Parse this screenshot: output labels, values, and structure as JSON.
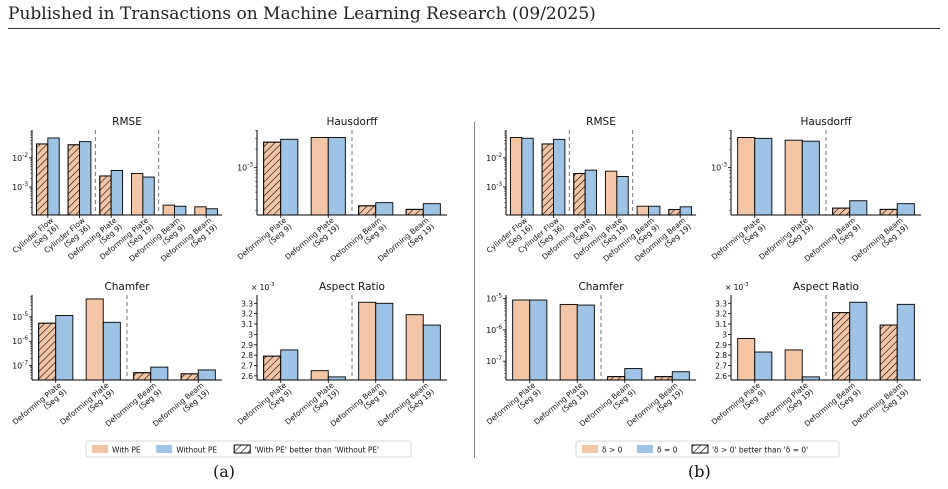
{
  "header": "Published in Transactions on Machine Learning Research (09/2025)",
  "captions": [
    "(a)",
    "(b)"
  ],
  "colors": {
    "orange": "#f5c6a5",
    "blue": "#9dc3e6",
    "edge": "#000000",
    "dash": "#777777"
  },
  "legends": [
    {
      "items": [
        "With PE",
        "Without PE",
        "'With PE' better than 'Without PE'"
      ]
    },
    {
      "items": [
        "δ > 0",
        "δ = 0",
        "'δ > 0' better than 'δ = 0'"
      ]
    }
  ],
  "chart_data": [
    {
      "panel": "a",
      "type": "bar",
      "title": "RMSE",
      "yscale": "log",
      "ylim": [
        0.00011,
        0.09
      ],
      "yticks": [
        {
          "v": 0.01,
          "label": "10^-2"
        },
        {
          "v": 0.001,
          "label": "10^-3"
        }
      ],
      "categories": [
        "Cylinder Flow\n(Seg 16)",
        "Cylinder Flow\n(Seg 36)",
        "Deforming Plate\n(Seg 9)",
        "Deforming Plate\n(Seg 19)",
        "Deforming Beam\n(Seg 9)",
        "Deforming Beam\n(Seg 19)"
      ],
      "series": [
        {
          "values": [
            0.03,
            0.028,
            0.0024,
            0.0029,
            0.00024,
            0.00021
          ]
        },
        {
          "values": [
            0.048,
            0.036,
            0.0037,
            0.0022,
            0.00022,
            0.00018
          ]
        }
      ],
      "hatched": [
        true,
        true,
        true,
        false,
        false,
        false
      ],
      "dividers": [
        1.5,
        3.5
      ]
    },
    {
      "panel": "a",
      "type": "bar",
      "title": "Hausdorff",
      "yscale": "log",
      "ylim": [
        0.00017,
        0.0041
      ],
      "yticks": [
        {
          "v": 0.001,
          "label": "10^-3"
        }
      ],
      "categories": [
        "Deforming Plate\n(Seg 9)",
        "Deforming Plate\n(Seg 19)",
        "Deforming Beam\n(Seg 9)",
        "Deforming Beam\n(Seg 19)"
      ],
      "series": [
        {
          "values": [
            0.0026,
            0.0031,
            0.00024,
            0.00021
          ]
        },
        {
          "values": [
            0.0029,
            0.0031,
            0.00027,
            0.00026
          ]
        }
      ],
      "hatched": [
        true,
        false,
        true,
        true
      ],
      "dividers": [
        1.5
      ]
    },
    {
      "panel": "a",
      "type": "bar",
      "title": "Chamfer",
      "yscale": "log",
      "ylim": [
        2.5e-08,
        8e-05
      ],
      "yticks": [
        {
          "v": 1e-05,
          "label": "10^-5"
        },
        {
          "v": 1e-06,
          "label": "10^-6"
        },
        {
          "v": 1e-07,
          "label": "10^-7"
        }
      ],
      "categories": [
        "Deforming Plate\n(Seg 9)",
        "Deforming Plate\n(Seg 19)",
        "Deforming Beam\n(Seg 9)",
        "Deforming Beam\n(Seg 19)"
      ],
      "series": [
        {
          "values": [
            5.5e-06,
            5.5e-05,
            5e-08,
            4.5e-08
          ]
        },
        {
          "values": [
            1.15e-05,
            6e-06,
            8.5e-08,
            6.5e-08
          ]
        }
      ],
      "hatched": [
        true,
        false,
        true,
        true
      ],
      "dividers": [
        1.5
      ]
    },
    {
      "panel": "a",
      "type": "bar",
      "title": "Aspect Ratio",
      "yscale": "linear",
      "ylim": [
        2.56,
        3.38
      ],
      "multiplier": "× 10^-3",
      "yticks": [
        {
          "v": 2.6,
          "label": "2.6"
        },
        {
          "v": 2.7,
          "label": "2.7"
        },
        {
          "v": 2.8,
          "label": "2.8"
        },
        {
          "v": 2.9,
          "label": "2.9"
        },
        {
          "v": 3.0,
          "label": "3"
        },
        {
          "v": 3.1,
          "label": "3.1"
        },
        {
          "v": 3.2,
          "label": "3.2"
        },
        {
          "v": 3.3,
          "label": "3.3"
        }
      ],
      "categories": [
        "Deforming Plate\n(Seg 9)",
        "Deforming Plate\n(Seg 19)",
        "Deforming Beam\n(Seg 9)",
        "Deforming Beam\n(Seg 19)"
      ],
      "series": [
        {
          "values": [
            2.79,
            2.65,
            3.31,
            3.19
          ]
        },
        {
          "values": [
            2.85,
            2.59,
            3.3,
            3.09
          ]
        }
      ],
      "hatched": [
        true,
        false,
        false,
        false
      ],
      "dividers": [
        1.5
      ]
    },
    {
      "panel": "b",
      "type": "bar",
      "title": "RMSE",
      "yscale": "log",
      "ylim": [
        0.00011,
        0.09
      ],
      "yticks": [
        {
          "v": 0.01,
          "label": "10^-2"
        },
        {
          "v": 0.001,
          "label": "10^-3"
        }
      ],
      "categories": [
        "Cylinder Flow\n(Seg 16)",
        "Cylinder Flow\n(Seg 36)",
        "Deforming Plate\n(Seg 9)",
        "Deforming Plate\n(Seg 19)",
        "Deforming Beam\n(Seg 9)",
        "Deforming Beam\n(Seg 19)"
      ],
      "series": [
        {
          "values": [
            0.05,
            0.03,
            0.0029,
            0.0035,
            0.00022,
            0.00017
          ]
        },
        {
          "values": [
            0.047,
            0.043,
            0.0038,
            0.0023,
            0.00022,
            0.00021
          ]
        }
      ],
      "hatched": [
        false,
        true,
        true,
        false,
        false,
        true
      ],
      "dividers": [
        1.5,
        3.5
      ]
    },
    {
      "panel": "b",
      "type": "bar",
      "title": "Hausdorff",
      "yscale": "log",
      "ylim": [
        0.00017,
        0.0041
      ],
      "yticks": [
        {
          "v": 0.001,
          "label": "10^-3"
        }
      ],
      "categories": [
        "Deforming Plate\n(Seg 9)",
        "Deforming Plate\n(Seg 19)",
        "Deforming Beam\n(Seg 9)",
        "Deforming Beam\n(Seg 19)"
      ],
      "series": [
        {
          "values": [
            0.0031,
            0.0028,
            0.00022,
            0.00021
          ]
        },
        {
          "values": [
            0.003,
            0.0027,
            0.00029,
            0.00026
          ]
        }
      ],
      "hatched": [
        false,
        false,
        true,
        true
      ],
      "dividers": [
        1.5
      ]
    },
    {
      "panel": "b",
      "type": "bar",
      "title": "Chamfer",
      "yscale": "log",
      "ylim": [
        2.5e-08,
        1.3e-05
      ],
      "yticks": [
        {
          "v": 1e-05,
          "label": "10^-5"
        },
        {
          "v": 1e-06,
          "label": "10^-6"
        },
        {
          "v": 1e-07,
          "label": "10^-7"
        }
      ],
      "categories": [
        "Deforming Plate\n(Seg 9)",
        "Deforming Plate\n(Seg 19)",
        "Deforming Beam\n(Seg 9)",
        "Deforming Beam\n(Seg 19)"
      ],
      "series": [
        {
          "values": [
            9e-06,
            6.5e-06,
            3.2e-08,
            3.2e-08
          ]
        },
        {
          "values": [
            9e-06,
            6.2e-06,
            5.8e-08,
            4.6e-08
          ]
        }
      ],
      "hatched": [
        false,
        false,
        true,
        true
      ],
      "dividers": [
        1.5
      ]
    },
    {
      "panel": "b",
      "type": "bar",
      "title": "Aspect Ratio",
      "yscale": "linear",
      "ylim": [
        2.56,
        3.38
      ],
      "multiplier": "× 10^-3",
      "yticks": [
        {
          "v": 2.6,
          "label": "2.6"
        },
        {
          "v": 2.7,
          "label": "2.7"
        },
        {
          "v": 2.8,
          "label": "2.8"
        },
        {
          "v": 2.9,
          "label": "2.9"
        },
        {
          "v": 3.0,
          "label": "3"
        },
        {
          "v": 3.1,
          "label": "3.1"
        },
        {
          "v": 3.2,
          "label": "3.2"
        },
        {
          "v": 3.3,
          "label": "3.3"
        }
      ],
      "categories": [
        "Deforming Plate\n(Seg 9)",
        "Deforming Plate\n(Seg 19)",
        "Deforming Beam\n(Seg 9)",
        "Deforming Beam\n(Seg 19)"
      ],
      "series": [
        {
          "values": [
            2.96,
            2.85,
            3.21,
            3.09
          ]
        },
        {
          "values": [
            2.83,
            2.59,
            3.31,
            3.29
          ]
        }
      ],
      "hatched": [
        false,
        false,
        true,
        true
      ],
      "dividers": [
        1.5
      ]
    }
  ]
}
